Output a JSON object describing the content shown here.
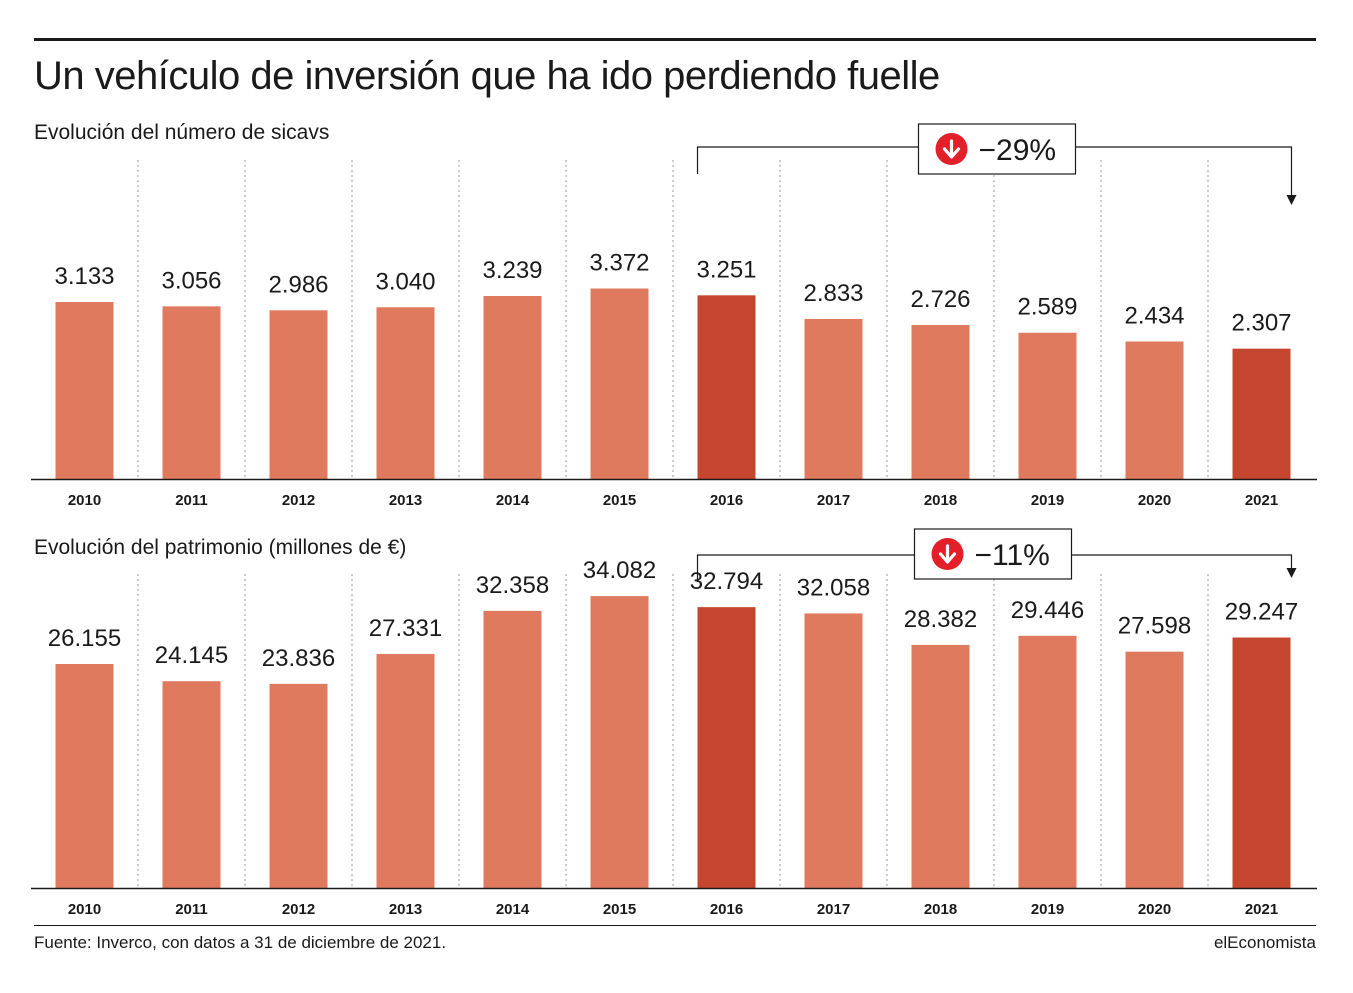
{
  "title": "Un vehículo de inversión que ha ido perdiendo fuelle",
  "source": "Fuente: Inverco, con datos a 31 de diciembre de 2021.",
  "brand": "elEconomista",
  "colors": {
    "bar": "#df7a5e",
    "highlight": "#c6452e",
    "badge": "#e3202a",
    "grid": "#9a9a9a"
  },
  "chart_data": [
    {
      "type": "bar",
      "title": "Evolución del número de sicavs",
      "categories": [
        "2010",
        "2011",
        "2012",
        "2013",
        "2014",
        "2015",
        "2016",
        "2017",
        "2018",
        "2019",
        "2020",
        "2021"
      ],
      "values": [
        3133,
        3056,
        2986,
        3040,
        3239,
        3372,
        3251,
        2833,
        2726,
        2589,
        2434,
        2307
      ],
      "labels": [
        "3.133",
        "3.056",
        "2.986",
        "3.040",
        "3.239",
        "3.372",
        "3.251",
        "2.833",
        "2.726",
        "2.589",
        "2.434",
        "2.307"
      ],
      "highlighted": [
        "2016",
        "2021"
      ],
      "change": {
        "from": "2016",
        "to": "2021",
        "label": "−29%",
        "icon": "down-arrow-icon"
      }
    },
    {
      "type": "bar",
      "title": "Evolución del patrimonio (millones de €)",
      "categories": [
        "2010",
        "2011",
        "2012",
        "2013",
        "2014",
        "2015",
        "2016",
        "2017",
        "2018",
        "2019",
        "2020",
        "2021"
      ],
      "values": [
        26155,
        24145,
        23836,
        27331,
        32358,
        34082,
        32794,
        32058,
        28382,
        29446,
        27598,
        29247
      ],
      "labels": [
        "26.155",
        "24.145",
        "23.836",
        "27.331",
        "32.358",
        "34.082",
        "32.794",
        "32.058",
        "28.382",
        "29.446",
        "27.598",
        "29.247"
      ],
      "highlighted": [
        "2016",
        "2021"
      ],
      "change": {
        "from": "2016",
        "to": "2021",
        "label": "−11%",
        "icon": "down-arrow-icon"
      }
    }
  ]
}
